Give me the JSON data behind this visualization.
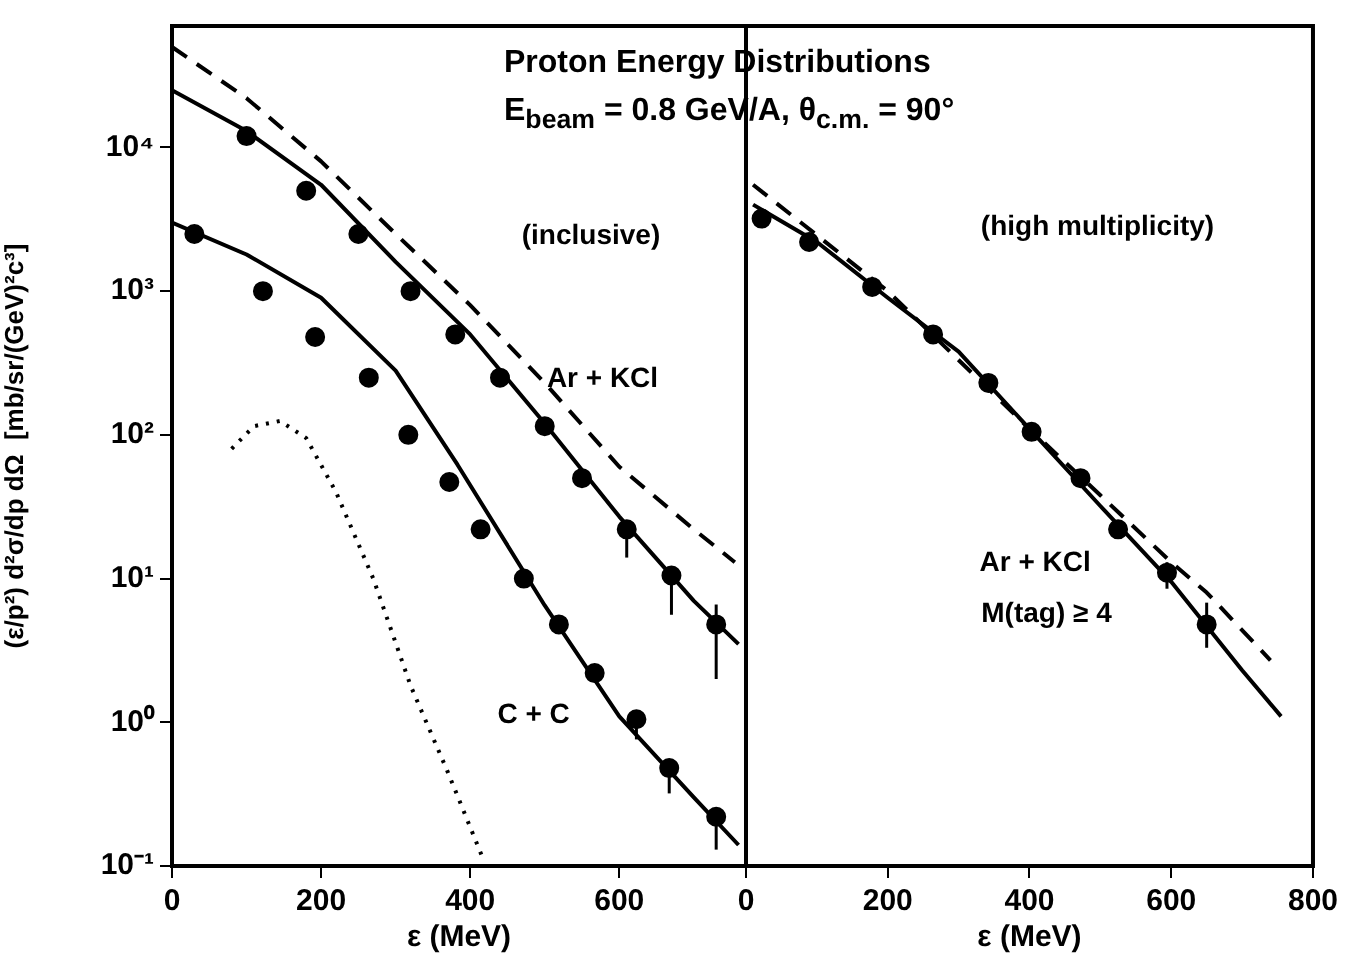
{
  "chart_data": [
    {
      "type": "scatter",
      "title": "Proton Energy Distributions",
      "subtitle": "E$_{beam}$ = 0.8 GeV/A,  θ$_{c.m.}$ = 90°",
      "xlabel": "ε (MeV)",
      "ylabel": "(ε/p²) d²σ/dp dΩ  [mb/sr/(GeV)²c³]",
      "log": "y",
      "grid": false,
      "xlim": [
        0,
        770
      ],
      "xticks": [
        0,
        200,
        400,
        600
      ],
      "ylim": [
        0.1,
        70000
      ],
      "yticks": [
        {
          "value": 0.1,
          "label": "10⁻¹"
        },
        {
          "value": 1,
          "label": "10⁰"
        },
        {
          "value": 10,
          "label": "10¹"
        },
        {
          "value": 100,
          "label": "10²"
        },
        {
          "value": 1000,
          "label": "10³"
        },
        {
          "value": 10000,
          "label": "10⁴"
        }
      ],
      "annotations": [
        "(inclusive)",
        "Ar + KCl",
        "C + C"
      ],
      "series": [
        {
          "marker": "circle",
          "color": "#000000",
          "x": [
            100,
            180,
            250,
            320,
            380,
            440,
            500,
            550,
            610,
            670,
            730
          ],
          "values": [
            12000,
            5000,
            2500,
            1000,
            500,
            250,
            115,
            50,
            22,
            10.5,
            4.8
          ],
          "errors": [
            null,
            null,
            null,
            null,
            null,
            null,
            null,
            null,
            [
              14,
              22
            ],
            [
              5.6,
              11
            ],
            [
              2,
              6.6
            ]
          ]
        },
        {
          "marker": "circle",
          "color": "#000000",
          "x": [
            30,
            122,
            192,
            264,
            317,
            372,
            414,
            472,
            519,
            567,
            623,
            667,
            730
          ],
          "values": [
            2500,
            1000,
            480,
            250,
            100,
            47,
            22,
            10,
            4.8,
            2.2,
            1.05,
            0.48,
            0.22
          ],
          "errors": [
            null,
            null,
            null,
            null,
            null,
            null,
            null,
            null,
            null,
            null,
            [
              0.76,
              1.05
            ],
            [
              0.32,
              0.48
            ],
            [
              0.13,
              0.22
            ]
          ]
        },
        {
          "type": "line",
          "marker": "none",
          "line_style": "solid",
          "color": "#000000",
          "x": [
            0,
            100,
            200,
            300,
            400,
            500,
            600,
            700,
            760
          ],
          "values": [
            25000,
            13000,
            5500,
            1600,
            500,
            120,
            27,
            7,
            3.5
          ]
        },
        {
          "type": "line",
          "marker": "none",
          "line_style": "dashed",
          "color": "#000000",
          "x": [
            0,
            100,
            200,
            300,
            400,
            500,
            600,
            700,
            755
          ],
          "values": [
            50000,
            22000,
            8000,
            2500,
            800,
            230,
            60,
            22,
            13
          ]
        },
        {
          "type": "line",
          "marker": "none",
          "line_style": "solid",
          "color": "#000000",
          "x": [
            0,
            100,
            200,
            300,
            383,
            500,
            600,
            700,
            760
          ],
          "values": [
            3000,
            1800,
            900,
            280,
            62,
            6.5,
            1.1,
            0.3,
            0.14
          ]
        },
        {
          "type": "line",
          "marker": "none",
          "line_style": "dotted",
          "color": "#000000",
          "x": [
            80,
            110,
            145,
            180,
            220,
            270,
            320,
            370,
            415
          ],
          "values": [
            80,
            115,
            125,
            95,
            40,
            10,
            1.8,
            0.45,
            0.12
          ]
        }
      ]
    },
    {
      "type": "scatter",
      "xlabel": "ε (MeV)",
      "log": "y",
      "grid": false,
      "tick_labels": "x",
      "xlim": [
        0,
        800
      ],
      "xticks": [
        0,
        200,
        400,
        600,
        800
      ],
      "ylim": [
        0.1,
        70000
      ],
      "annotations": [
        "(high multiplicity)",
        "Ar + KCl",
        "M(tag) ≥ 4"
      ],
      "series": [
        {
          "marker": "circle",
          "color": "#000000",
          "x": [
            22,
            89,
            178,
            264,
            342,
            403,
            472,
            525,
            594,
            650
          ],
          "values": [
            3200,
            2200,
            1070,
            500,
            230,
            105,
            50,
            22,
            11,
            4.8
          ],
          "errors": [
            null,
            null,
            null,
            null,
            null,
            null,
            null,
            null,
            [
              8.5,
              13
            ],
            [
              3.3,
              6.8
            ]
          ]
        },
        {
          "type": "line",
          "marker": "none",
          "line_style": "solid",
          "color": "#000000",
          "x": [
            10,
            100,
            200,
            300,
            400,
            500,
            600,
            700,
            755
          ],
          "values": [
            4000,
            2200,
            900,
            380,
            110,
            32,
            9.5,
            2.3,
            1.1
          ]
        },
        {
          "type": "line",
          "marker": "none",
          "line_style": "dashed",
          "color": "#000000",
          "x": [
            10,
            200,
            400,
            500,
            600,
            650,
            740
          ],
          "values": [
            5500,
            1000,
            110,
            38,
            13,
            8,
            2.7
          ]
        }
      ]
    }
  ]
}
